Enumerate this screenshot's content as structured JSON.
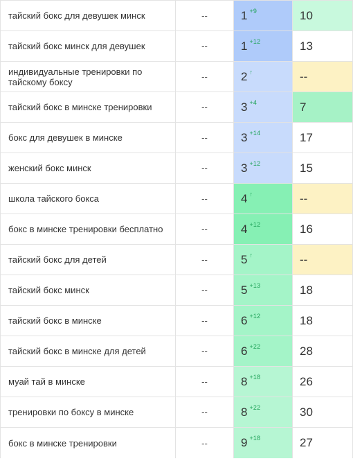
{
  "palette": {
    "pos_blue_dark": "#afcbfa",
    "pos_blue_light": "#c8dbfc",
    "pos_green_dark": "#86f0b4",
    "pos_green_mid": "#a4f4c8",
    "pos_green_light": "#b6f6d3",
    "prev_green_pale": "#c8f9dd",
    "prev_green": "#a6f2c6",
    "prev_yellow": "#fdf2c4",
    "white": "#ffffff"
  },
  "rows": [
    {
      "query": "тайский бокс для девушек минск",
      "freq": "--",
      "pos": "1",
      "delta": "+9",
      "prev": "10",
      "pos_bg": "#afcbfa",
      "prev_bg": "#c8f9dd"
    },
    {
      "query": "тайский бокс минск для девушек",
      "freq": "--",
      "pos": "1",
      "delta": "+12",
      "prev": "13",
      "pos_bg": "#afcbfa",
      "prev_bg": "#ffffff"
    },
    {
      "query": "индивидуальные тренировки по тайскому боксу",
      "freq": "--",
      "pos": "2",
      "delta": "↑",
      "prev": "--",
      "pos_bg": "#c8dbfc",
      "prev_bg": "#fdf2c4"
    },
    {
      "query": "тайский бокс в минске тренировки",
      "freq": "--",
      "pos": "3",
      "delta": "+4",
      "prev": "7",
      "pos_bg": "#c8dbfc",
      "prev_bg": "#a6f2c6"
    },
    {
      "query": "бокс для девушек в минске",
      "freq": "--",
      "pos": "3",
      "delta": "+14",
      "prev": "17",
      "pos_bg": "#c8dbfc",
      "prev_bg": "#ffffff"
    },
    {
      "query": "женский бокс минск",
      "freq": "--",
      "pos": "3",
      "delta": "+12",
      "prev": "15",
      "pos_bg": "#c8dbfc",
      "prev_bg": "#ffffff"
    },
    {
      "query": "школа тайского бокса",
      "freq": "--",
      "pos": "4",
      "delta": "↑",
      "prev": "--",
      "pos_bg": "#86f0b4",
      "prev_bg": "#fdf2c4"
    },
    {
      "query": "бокс в минске тренировки бесплатно",
      "freq": "--",
      "pos": "4",
      "delta": "+12",
      "prev": "16",
      "pos_bg": "#86f0b4",
      "prev_bg": "#ffffff"
    },
    {
      "query": "тайский бокс для детей",
      "freq": "--",
      "pos": "5",
      "delta": "↑",
      "prev": "--",
      "pos_bg": "#a4f4c8",
      "prev_bg": "#fdf2c4"
    },
    {
      "query": "тайский бокс минск",
      "freq": "--",
      "pos": "5",
      "delta": "+13",
      "prev": "18",
      "pos_bg": "#a4f4c8",
      "prev_bg": "#ffffff"
    },
    {
      "query": "тайский бокс в минске",
      "freq": "--",
      "pos": "6",
      "delta": "+12",
      "prev": "18",
      "pos_bg": "#a4f4c8",
      "prev_bg": "#ffffff"
    },
    {
      "query": "тайский бокс в минске для детей",
      "freq": "--",
      "pos": "6",
      "delta": "+22",
      "prev": "28",
      "pos_bg": "#a4f4c8",
      "prev_bg": "#ffffff"
    },
    {
      "query": "муай тай в минске",
      "freq": "--",
      "pos": "8",
      "delta": "+18",
      "prev": "26",
      "pos_bg": "#b6f6d3",
      "prev_bg": "#ffffff"
    },
    {
      "query": "тренировки по боксу в минске",
      "freq": "--",
      "pos": "8",
      "delta": "+22",
      "prev": "30",
      "pos_bg": "#b6f6d3",
      "prev_bg": "#ffffff"
    },
    {
      "query": "бокс в минске тренировки",
      "freq": "--",
      "pos": "9",
      "delta": "+18",
      "prev": "27",
      "pos_bg": "#b6f6d3",
      "prev_bg": "#ffffff"
    }
  ]
}
